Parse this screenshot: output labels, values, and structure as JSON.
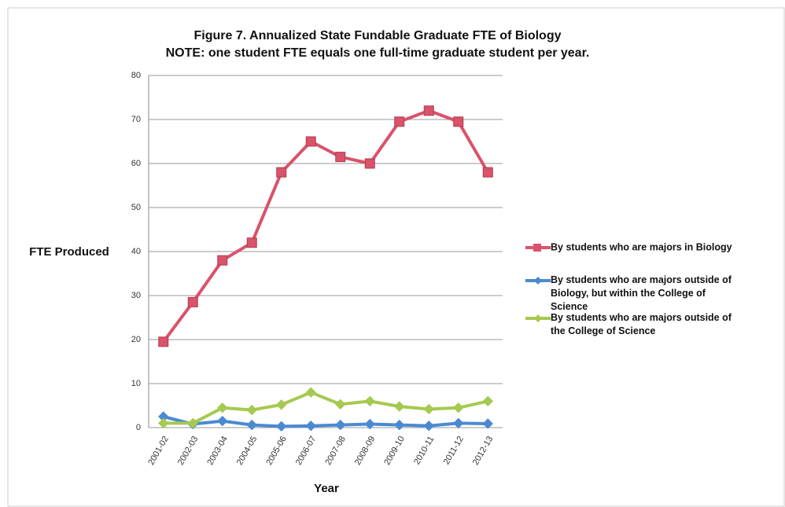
{
  "chart_data": {
    "type": "line",
    "title": "Figure 7. Annualized State Fundable Graduate FTE of Biology",
    "subtitle": "NOTE: one student FTE equals one full-time graduate student per year.",
    "x_label": "Year",
    "y_label": "FTE Produced",
    "categories": [
      "2001-02",
      "2002-03",
      "2003-04",
      "2004-05",
      "2005-06",
      "2006-07",
      "2007-08",
      "2008-09",
      "2009-10",
      "2010-11",
      "2011-12",
      "2012-13"
    ],
    "series": [
      {
        "name": "By students who are majors in Biology",
        "color": "#d9536a",
        "values": [
          19.5,
          28.5,
          38,
          42,
          58,
          65,
          61.5,
          60,
          69.5,
          72,
          69.5,
          58
        ]
      },
      {
        "name": "By students who are majors outside of Biology, but within the College of Science",
        "color": "#4a8ad3",
        "values": [
          2.5,
          0.8,
          1.5,
          0.6,
          0.3,
          0.4,
          0.6,
          0.8,
          0.6,
          0.4,
          1.0,
          0.9
        ]
      },
      {
        "name": "By students who are majors outside of the College of Science",
        "color": "#a6c94f",
        "values": [
          1.0,
          1.0,
          4.5,
          4.0,
          5.2,
          8.0,
          5.3,
          6.0,
          4.8,
          4.2,
          4.5,
          6.0
        ]
      }
    ],
    "ylim": [
      0,
      80
    ],
    "yticks": [
      0,
      10,
      20,
      30,
      40,
      50,
      60,
      70,
      80
    ],
    "grid": true,
    "legend": "right"
  }
}
